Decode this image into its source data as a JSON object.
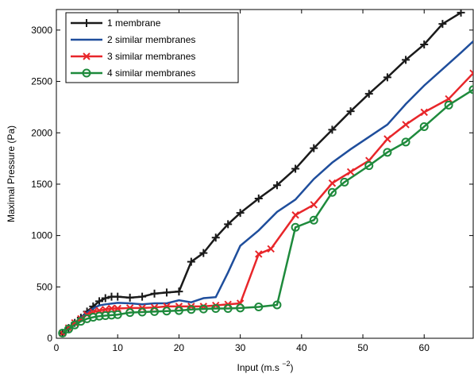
{
  "chart_data": {
    "type": "line",
    "xlabel": [
      "Input (m.s ",
      "−2",
      ")"
    ],
    "ylabel": "Maximal Pressure (Pa)",
    "xlim": [
      0,
      68
    ],
    "ylim": [
      0,
      3200
    ],
    "xticks": [
      0,
      10,
      20,
      30,
      40,
      50,
      60
    ],
    "yticks": [
      0,
      500,
      1000,
      1500,
      2000,
      2500,
      3000
    ],
    "legend": "upper left",
    "series": [
      {
        "name": "1 membrane",
        "color": "#1a1a1a",
        "marker": "plus",
        "x": [
          1,
          2,
          3,
          4,
          5,
          6,
          7,
          8,
          9,
          10,
          12,
          14,
          16,
          18,
          20,
          22,
          24,
          26,
          28,
          30,
          33,
          36,
          39,
          42,
          45,
          48,
          51,
          54,
          57,
          60,
          63,
          66
        ],
        "values": [
          50,
          100,
          150,
          200,
          260,
          310,
          360,
          390,
          405,
          405,
          395,
          405,
          435,
          445,
          455,
          745,
          830,
          980,
          1110,
          1220,
          1360,
          1490,
          1650,
          1850,
          2030,
          2210,
          2380,
          2540,
          2710,
          2860,
          3060,
          3170
        ]
      },
      {
        "name": "2 similar membranes",
        "color": "#1f4e9c",
        "marker": "none",
        "x": [
          1,
          2,
          3,
          4,
          5,
          6,
          7,
          8,
          10,
          12,
          14,
          16,
          18,
          20,
          22,
          24,
          26,
          28,
          30,
          33,
          36,
          39,
          42,
          45,
          48,
          51,
          54,
          57,
          60,
          63,
          66,
          68
        ],
        "values": [
          50,
          100,
          150,
          200,
          250,
          290,
          320,
          330,
          345,
          340,
          330,
          340,
          340,
          370,
          350,
          390,
          400,
          640,
          900,
          1050,
          1230,
          1350,
          1550,
          1710,
          1840,
          1960,
          2080,
          2280,
          2460,
          2620,
          2780,
          2890
        ]
      },
      {
        "name": "3 similar membranes",
        "color": "#e8262a",
        "marker": "x",
        "x": [
          1,
          2,
          3,
          4,
          5,
          6,
          7,
          8,
          9,
          10,
          12,
          14,
          16,
          18,
          20,
          22,
          24,
          26,
          28,
          30,
          33,
          35,
          39,
          42,
          45,
          48,
          51,
          54,
          57,
          60,
          64,
          68
        ],
        "values": [
          50,
          100,
          150,
          190,
          230,
          255,
          270,
          280,
          290,
          290,
          295,
          295,
          300,
          310,
          310,
          310,
          310,
          320,
          330,
          340,
          820,
          870,
          1200,
          1300,
          1510,
          1620,
          1730,
          1940,
          2080,
          2200,
          2330,
          2580
        ]
      },
      {
        "name": "4 similar membranes",
        "color": "#1e8a3c",
        "marker": "circle",
        "x": [
          1,
          2,
          3,
          4,
          5,
          6,
          7,
          8,
          9,
          10,
          12,
          14,
          16,
          18,
          20,
          22,
          24,
          26,
          28,
          30,
          33,
          36,
          39,
          42,
          45,
          47,
          51,
          54,
          57,
          60,
          64,
          68
        ],
        "values": [
          50,
          90,
          130,
          165,
          190,
          205,
          215,
          220,
          225,
          230,
          250,
          255,
          260,
          265,
          270,
          280,
          285,
          290,
          290,
          295,
          305,
          325,
          1080,
          1150,
          1420,
          1520,
          1680,
          1810,
          1910,
          2060,
          2270,
          2420
        ]
      }
    ]
  }
}
